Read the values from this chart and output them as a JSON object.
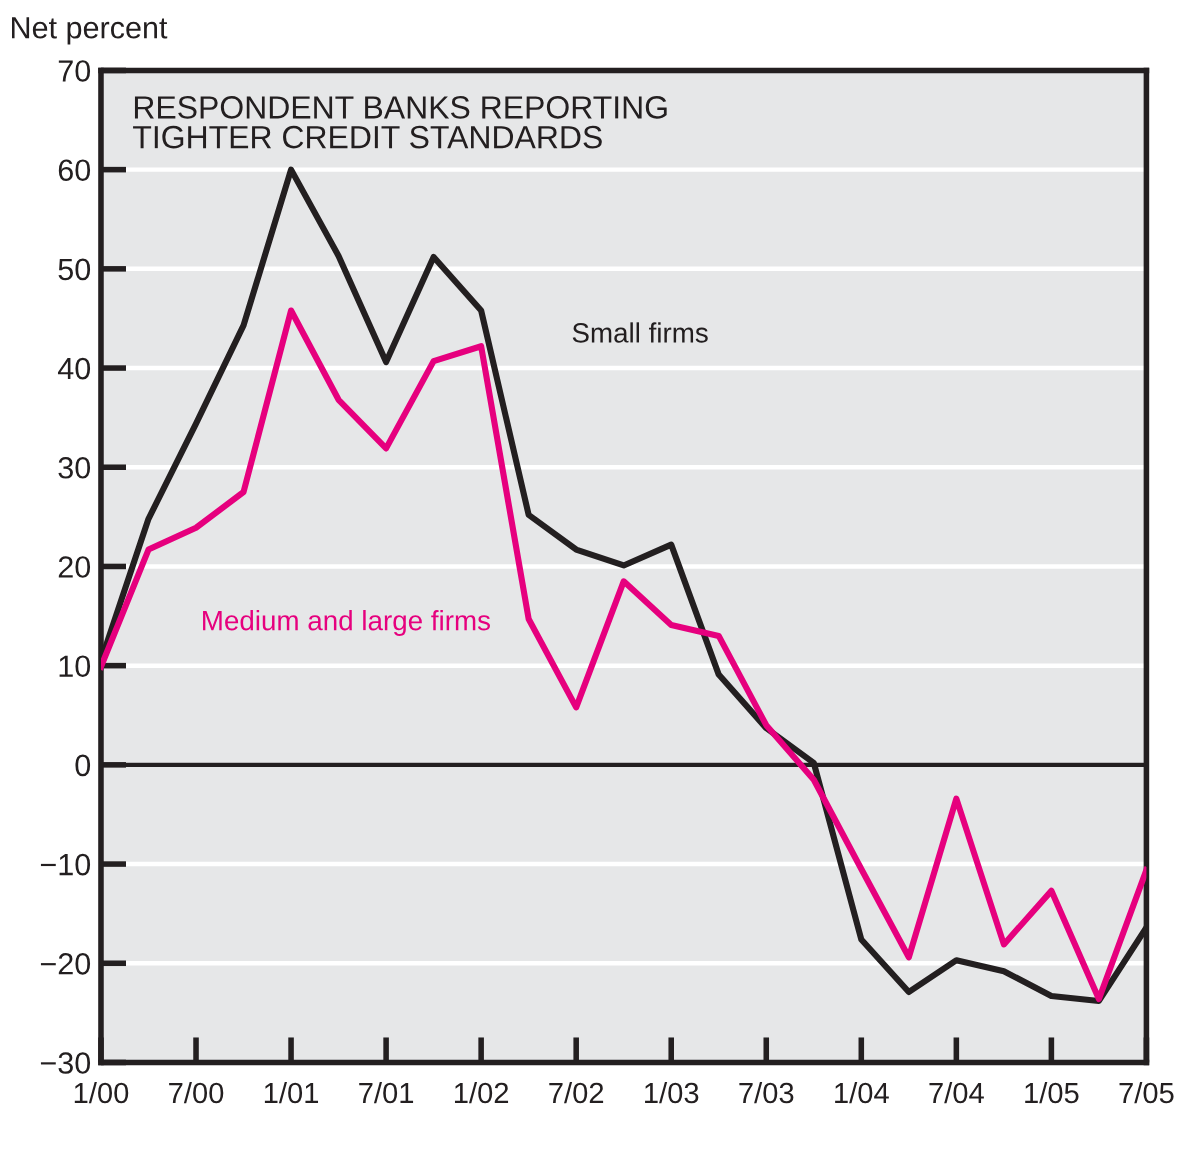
{
  "chart_data": {
    "type": "line",
    "ylabel": "Net percent",
    "annotations": [
      "RESPONDENT BANKS REPORTING\nTIGHTER CREDIT STANDARDS"
    ],
    "categories": [
      "1/00",
      null,
      "7/00",
      null,
      "1/01",
      null,
      "7/01",
      null,
      "1/02",
      null,
      "7/02",
      null,
      "1/03",
      null,
      "7/03",
      null,
      "1/04",
      null,
      "7/04",
      null,
      "1/05",
      null,
      "7/05"
    ],
    "series": [
      {
        "name": "Small firms",
        "color": "#231f20",
        "values": [
          10.5,
          24.8,
          34.4,
          44.3,
          60,
          51.3,
          40.6,
          51.2,
          45.8,
          25.2,
          21.7,
          20.1,
          22.2,
          9.1,
          3.7,
          0.2,
          -17.6,
          -22.9,
          -19.7,
          -20.8,
          -23.3,
          -23.8,
          -16.4
        ]
      },
      {
        "name": "Medium and large firms",
        "color": "#e6007e",
        "values": [
          9.9,
          21.7,
          23.9,
          27.5,
          45.8,
          36.8,
          31.9,
          40.7,
          42.2,
          14.7,
          5.8,
          18.5,
          14.1,
          13,
          4,
          -1.5,
          -10.5,
          -19.4,
          -3.4,
          -18.1,
          -12.7,
          -23.6,
          -10.6
        ]
      }
    ],
    "ylim": [
      -30,
      70
    ],
    "yticks": [
      -30,
      -20,
      -10,
      0,
      10,
      20,
      30,
      40,
      50,
      60,
      70
    ],
    "ref_lines": [
      {
        "axis": "y",
        "value": 0,
        "color": "#231f20"
      }
    ],
    "grid": "y",
    "marker": "none",
    "line_style": "solid",
    "legend": false
  }
}
